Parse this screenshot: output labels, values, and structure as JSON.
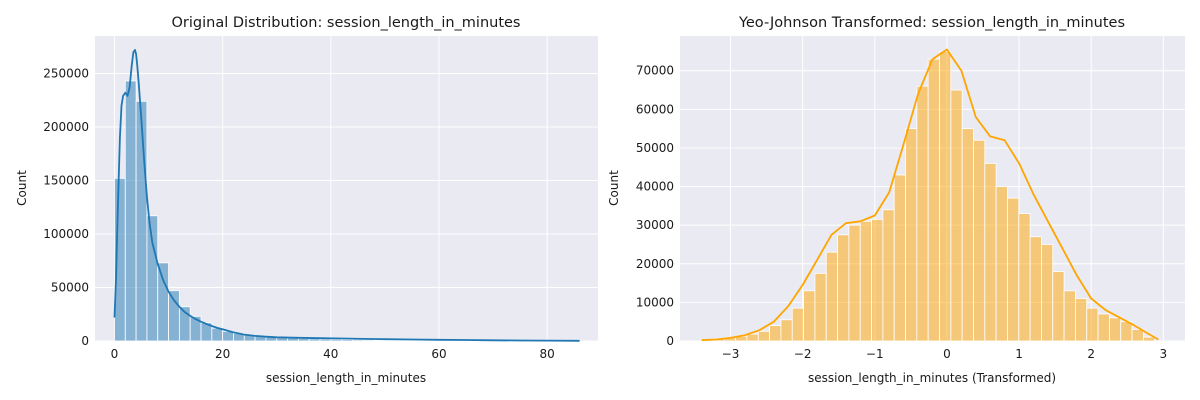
{
  "colors": {
    "background": "#ffffff",
    "axes_bg": "#eaeaf2",
    "left_series": "#1f77b4",
    "right_series": "#ffa500"
  },
  "chart_data": [
    {
      "type": "bar",
      "title": "Original Distribution: session_length_in_minutes",
      "xlabel": "session_length_in_minutes",
      "ylabel": "Count",
      "xlim": [
        -3.6,
        89.4
      ],
      "ylim": [
        0,
        285000
      ],
      "xticks": [
        0,
        20,
        40,
        60,
        80
      ],
      "xtick_labels": [
        "0",
        "20",
        "40",
        "60",
        "80"
      ],
      "yticks": [
        0,
        50000,
        100000,
        150000,
        200000,
        250000
      ],
      "ytick_labels": [
        "0",
        "50000",
        "100000",
        "150000",
        "200000",
        "250000"
      ],
      "grid": true,
      "legend": "none",
      "bins": {
        "start": 0,
        "width": 2,
        "counts": [
          152000,
          243000,
          224000,
          117000,
          73000,
          47000,
          32000,
          23000,
          17000,
          12000,
          9000,
          7000,
          5500,
          4500,
          3500,
          3000,
          2600,
          2300,
          2000,
          1700,
          1500,
          1300,
          1100,
          950,
          800,
          700,
          600,
          520,
          450,
          390,
          340,
          300,
          260,
          230,
          200,
          180,
          160,
          140,
          120,
          110,
          100,
          90,
          80
        ]
      },
      "kde": {
        "x": [
          0,
          0.3,
          0.6,
          1,
          1.3,
          1.6,
          2,
          2.4,
          2.8,
          3.2,
          3.5,
          3.8,
          4,
          4.2,
          4.5,
          5,
          5.5,
          6,
          6.5,
          7,
          8,
          9,
          10,
          11,
          12,
          13,
          14,
          15,
          16,
          17,
          18,
          19,
          20,
          22,
          24,
          26,
          28,
          30,
          34,
          38,
          42,
          46,
          50,
          55,
          60,
          65,
          70,
          75,
          80,
          86
        ],
        "y": [
          22000,
          60000,
          120000,
          190000,
          220000,
          229000,
          232000,
          229000,
          237000,
          258000,
          270000,
          272000,
          268000,
          258000,
          240000,
          205000,
          168000,
          135000,
          110000,
          92000,
          72000,
          57000,
          46000,
          38000,
          32000,
          27000,
          23500,
          20500,
          18000,
          16000,
          14000,
          12200,
          11000,
          8000,
          6000,
          4800,
          4000,
          3500,
          3000,
          2600,
          2300,
          2000,
          1700,
          1400,
          1100,
          900,
          700,
          500,
          350,
          200
        ]
      }
    },
    {
      "type": "bar",
      "title": "Yeo-Johnson Transformed: session_length_in_minutes",
      "xlabel": "session_length_in_minutes (Transformed)",
      "ylabel": "Count",
      "xlim": [
        -3.7,
        3.3
      ],
      "ylim": [
        0,
        79000
      ],
      "xticks": [
        -3,
        -2,
        -1,
        0,
        1,
        2,
        3
      ],
      "xtick_labels": [
        "−3",
        "−2",
        "−1",
        "0",
        "1",
        "2",
        "3"
      ],
      "yticks": [
        0,
        10000,
        20000,
        30000,
        40000,
        50000,
        60000,
        70000
      ],
      "ytick_labels": [
        "0",
        "10000",
        "20000",
        "30000",
        "40000",
        "50000",
        "60000",
        "70000"
      ],
      "grid": true,
      "legend": "none",
      "bins": {
        "start": -3.4,
        "width": 0.157,
        "counts": [
          300,
          500,
          800,
          1200,
          1800,
          2500,
          4000,
          5500,
          8500,
          13000,
          17500,
          23000,
          27500,
          30000,
          31000,
          31500,
          34000,
          43000,
          55000,
          66000,
          73000,
          75000,
          65000,
          55000,
          52000,
          46000,
          40000,
          37000,
          33000,
          27000,
          25000,
          18000,
          13000,
          11000,
          8500,
          7000,
          6000,
          5000,
          3000,
          1000
        ]
      },
      "kde": {
        "x": [
          -3.4,
          -3.2,
          -3.0,
          -2.8,
          -2.6,
          -2.4,
          -2.2,
          -2.0,
          -1.8,
          -1.6,
          -1.4,
          -1.2,
          -1.0,
          -0.8,
          -0.6,
          -0.4,
          -0.2,
          0,
          0.2,
          0.4,
          0.6,
          0.8,
          1.0,
          1.2,
          1.4,
          1.6,
          1.8,
          2.0,
          2.2,
          2.4,
          2.6,
          2.8,
          2.93
        ],
        "y": [
          200,
          400,
          800,
          1500,
          2800,
          5000,
          9000,
          14500,
          21000,
          27500,
          30500,
          31000,
          32500,
          38500,
          51000,
          64000,
          73000,
          75500,
          70000,
          58000,
          53000,
          52000,
          46000,
          38000,
          31000,
          24000,
          17000,
          11000,
          8000,
          6000,
          4000,
          1800,
          400
        ]
      }
    }
  ]
}
